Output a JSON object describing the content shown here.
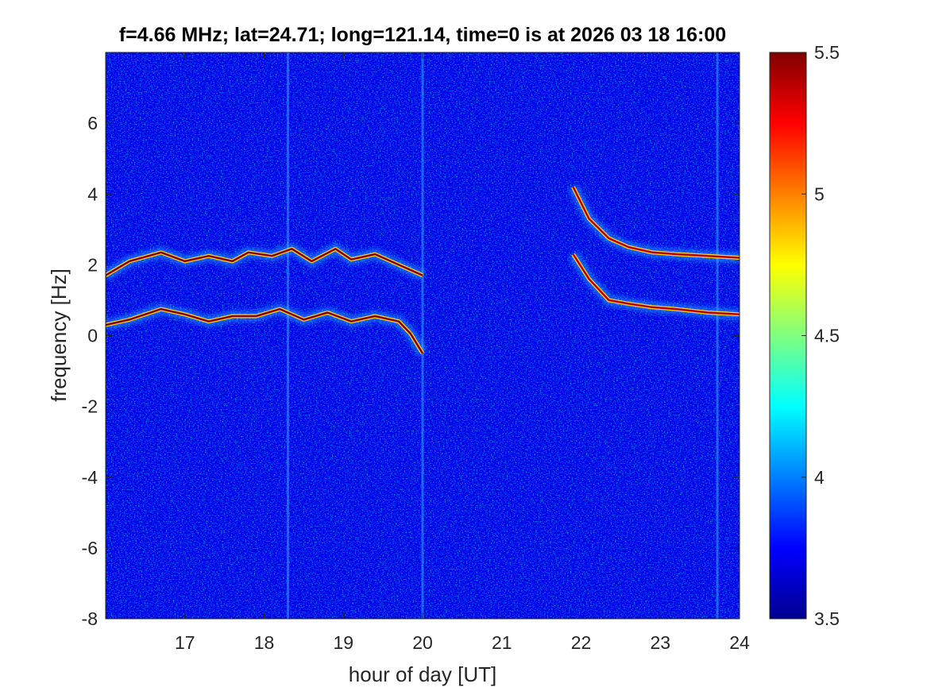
{
  "chart_data": {
    "type": "heatmap",
    "title": "f=4.66 MHz;  lat=24.71; long=121.14, time=0 is at 2026 03 18 16:00",
    "xlabel": "hour of day [UT]",
    "ylabel": "frequency [Hz]",
    "xlim": [
      16,
      24
    ],
    "ylim": [
      -8,
      8
    ],
    "xticks": [
      "17",
      "18",
      "19",
      "20",
      "21",
      "22",
      "23",
      "24"
    ],
    "yticks": [
      "-8",
      "-6",
      "-4",
      "-2",
      "0",
      "2",
      "4",
      "6"
    ],
    "colorbar": {
      "colormap": "jet",
      "limits": [
        3.5,
        5.5
      ],
      "ticks": [
        "3.5",
        "4",
        "4.5",
        "5",
        "5.5"
      ]
    },
    "background_level": 3.7,
    "traces": [
      {
        "points": [
          [
            16.0,
            1.7
          ],
          [
            16.3,
            2.1
          ],
          [
            16.7,
            2.35
          ],
          [
            17.0,
            2.1
          ],
          [
            17.3,
            2.25
          ],
          [
            17.6,
            2.1
          ],
          [
            17.8,
            2.35
          ],
          [
            18.1,
            2.25
          ],
          [
            18.35,
            2.45
          ],
          [
            18.6,
            2.1
          ],
          [
            18.9,
            2.45
          ],
          [
            19.1,
            2.15
          ],
          [
            19.4,
            2.3
          ],
          [
            19.7,
            2.0
          ],
          [
            20.0,
            1.7
          ]
        ],
        "level": 5.5
      },
      {
        "points": [
          [
            16.0,
            0.3
          ],
          [
            16.3,
            0.45
          ],
          [
            16.7,
            0.75
          ],
          [
            17.0,
            0.6
          ],
          [
            17.3,
            0.4
          ],
          [
            17.6,
            0.55
          ],
          [
            17.9,
            0.55
          ],
          [
            18.2,
            0.75
          ],
          [
            18.5,
            0.45
          ],
          [
            18.8,
            0.65
          ],
          [
            19.1,
            0.4
          ],
          [
            19.4,
            0.55
          ],
          [
            19.7,
            0.4
          ],
          [
            19.85,
            0.05
          ],
          [
            20.0,
            -0.5
          ]
        ],
        "level": 5.5
      },
      {
        "points": [
          [
            21.9,
            4.2
          ],
          [
            22.1,
            3.3
          ],
          [
            22.35,
            2.75
          ],
          [
            22.6,
            2.5
          ],
          [
            22.9,
            2.35
          ],
          [
            23.2,
            2.3
          ],
          [
            23.6,
            2.25
          ],
          [
            24.0,
            2.2
          ]
        ],
        "level": 5.4
      },
      {
        "points": [
          [
            21.9,
            2.3
          ],
          [
            22.1,
            1.6
          ],
          [
            22.35,
            1.0
          ],
          [
            22.6,
            0.9
          ],
          [
            22.9,
            0.8
          ],
          [
            23.2,
            0.75
          ],
          [
            23.6,
            0.65
          ],
          [
            24.0,
            0.6
          ]
        ],
        "level": 5.4
      }
    ],
    "vertical_streaks_hours": [
      18.3,
      20.0,
      23.72
    ]
  }
}
